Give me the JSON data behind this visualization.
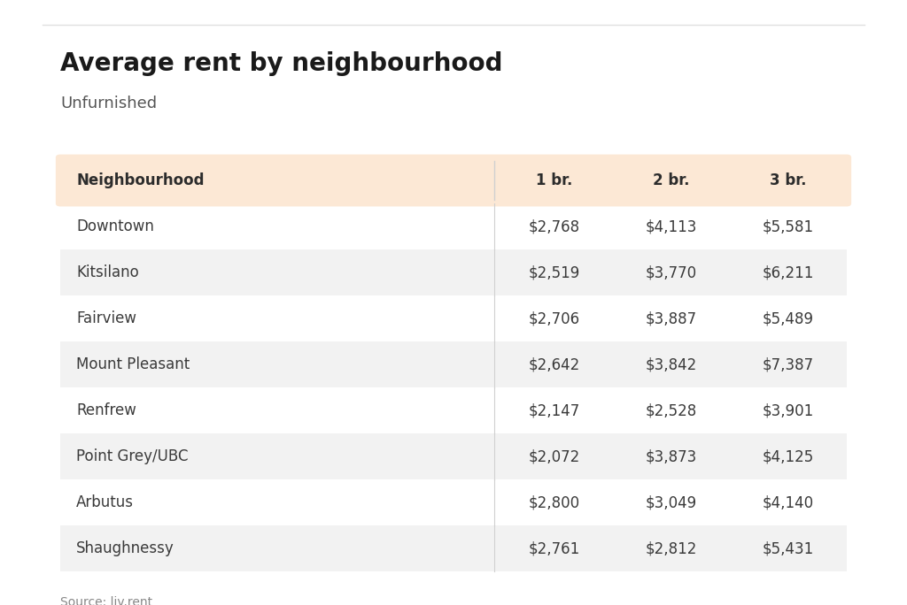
{
  "title": "Average rent by neighbourhood",
  "subtitle": "Unfurnished",
  "source": "Source: liv.rent",
  "header": [
    "Neighbourhood",
    "1 br.",
    "2 br.",
    "3 br."
  ],
  "rows": [
    [
      "Downtown",
      "$2,768",
      "$4,113",
      "$5,581"
    ],
    [
      "Kitsilano",
      "$2,519",
      "$3,770",
      "$6,211"
    ],
    [
      "Fairview",
      "$2,706",
      "$3,887",
      "$5,489"
    ],
    [
      "Mount Pleasant",
      "$2,642",
      "$3,842",
      "$7,387"
    ],
    [
      "Renfrew",
      "$2,147",
      "$2,528",
      "$3,901"
    ],
    [
      "Point Grey/UBC",
      "$2,072",
      "$3,873",
      "$4,125"
    ],
    [
      "Arbutus",
      "$2,800",
      "$3,049",
      "$4,140"
    ],
    [
      "Shaughnessy",
      "$2,761",
      "$2,812",
      "$5,431"
    ]
  ],
  "bg_color": "#ffffff",
  "header_bg": "#fce8d5",
  "row_alt_bg": "#f2f2f2",
  "row_bg": "#ffffff",
  "header_text_color": "#2c2c2c",
  "row_text_color": "#3a3a3a",
  "title_color": "#1a1a1a",
  "subtitle_color": "#555555",
  "source_color": "#888888",
  "title_fontsize": 20,
  "subtitle_fontsize": 13,
  "header_fontsize": 12,
  "row_fontsize": 12,
  "source_fontsize": 10,
  "divider_color": "#d0d0d0",
  "top_border_color": "#e0e0e0"
}
